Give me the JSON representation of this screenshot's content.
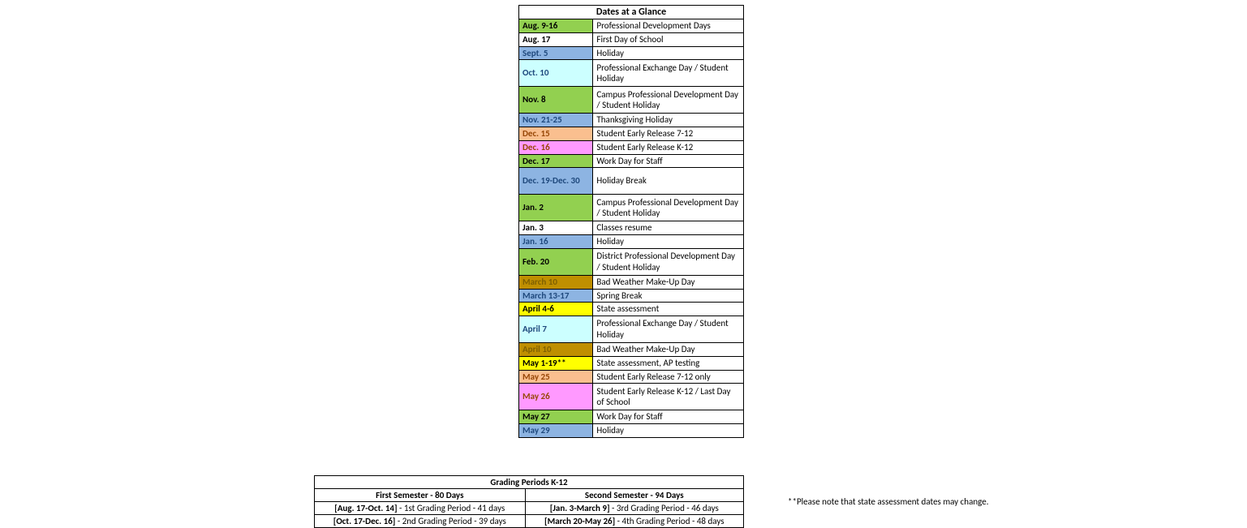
{
  "colors": {
    "green": "#92d050",
    "white": "#ffffff",
    "blue": "#8db4e2",
    "cyan": "#ccffff",
    "tan": "#fabf8f",
    "pink": "#ff99ff",
    "darkgreen": "#76933c",
    "gold": "#bf8f00",
    "yellow": "#ffff00"
  },
  "dates_title": "Dates at a Glance",
  "rows": [
    {
      "date": "Aug. 9-16",
      "desc": "Professional Development Days",
      "bg": "green",
      "fg": "#000"
    },
    {
      "date": "Aug. 17",
      "desc": "First Day of School",
      "bg": "white",
      "fg": "#000"
    },
    {
      "date": "Sept. 5",
      "desc": "Holiday",
      "bg": "blue",
      "fg": "#1f497d"
    },
    {
      "date": "Oct. 10",
      "desc": "Professional Exchange Day /\nStudent Holiday",
      "bg": "cyan",
      "fg": "#1f497d"
    },
    {
      "date": "Nov. 8",
      "desc": "Campus Professional Development Day / Student Holiday",
      "bg": "green",
      "fg": "#000"
    },
    {
      "date": "Nov. 21-25",
      "desc": "Thanksgiving Holiday",
      "bg": "blue",
      "fg": "#1f497d"
    },
    {
      "date": "Dec. 15",
      "desc": "Student Early Release 7-12",
      "bg": "tan",
      "fg": "#974706"
    },
    {
      "date": "Dec. 16",
      "desc": "Student Early Release K-12",
      "bg": "pink",
      "fg": "#974706"
    },
    {
      "date": "Dec. 17",
      "desc": "Work Day for Staff",
      "bg": "green",
      "fg": "#000"
    },
    {
      "date": "Dec. 19-Dec. 30",
      "desc": "Holiday Break",
      "bg": "blue",
      "fg": "#1f497d"
    },
    {
      "date": "Jan. 2",
      "desc": "Campus Professional Development Day / Student Holiday",
      "bg": "green",
      "fg": "#000"
    },
    {
      "date": "Jan. 3",
      "desc": "Classes resume",
      "bg": "white",
      "fg": "#000"
    },
    {
      "date": "Jan. 16",
      "desc": "Holiday",
      "bg": "blue",
      "fg": "#1f497d"
    },
    {
      "date": "Feb. 20",
      "desc": "District Professional Development Day / Student Holiday",
      "bg": "green",
      "fg": "#000"
    },
    {
      "date": "March 10",
      "desc": "Bad Weather Make-Up Day",
      "bg": "gold",
      "fg": "#7f6000"
    },
    {
      "date": "March 13-17",
      "desc": "Spring Break",
      "bg": "blue",
      "fg": "#1f497d"
    },
    {
      "date": "April 4-6",
      "desc": "State assessment",
      "bg": "yellow",
      "fg": "#000"
    },
    {
      "date": "April 7",
      "desc": "Professional Exchange Day /\nStudent Holiday",
      "bg": "cyan",
      "fg": "#1f497d"
    },
    {
      "date": "April 10",
      "desc": "Bad Weather Make-Up Day",
      "bg": "gold",
      "fg": "#7f6000"
    },
    {
      "date": "May 1-19**",
      "desc": "State assessment, AP testing",
      "bg": "yellow",
      "fg": "#000"
    },
    {
      "date": "May 25",
      "desc": "Student Early Release 7-12 only",
      "bg": "tan",
      "fg": "#974706"
    },
    {
      "date": "May 26",
      "desc": "Student Early Release K-12 / Last Day of School",
      "bg": "pink",
      "fg": "#974706"
    },
    {
      "date": "May 27",
      "desc": "Work Day for Staff",
      "bg": "green",
      "fg": "#000"
    },
    {
      "date": "May 29",
      "desc": "Holiday",
      "bg": "blue",
      "fg": "#1f497d"
    }
  ],
  "tall_rows": [
    3,
    4,
    9,
    10,
    13,
    17,
    21
  ],
  "grading": {
    "title": "Grading Periods K-12",
    "sem1_head": "First Semester - 80 Days",
    "sem2_head": "Second Semester - 94 Days",
    "sem1_r1_b": "[Aug. 17-Oct. 14]",
    "sem1_r1_t": " - 1st Grading Period - 41 days",
    "sem2_r1_b": "[Jan. 3-March 9]",
    "sem2_r1_t": " - 3rd Grading Period - 46 days",
    "sem1_r2_b": "[Oct. 17-Dec. 16]",
    "sem1_r2_t": " - 2nd Grading Period - 39 days",
    "sem2_r2_b": "[March 20-May 26]",
    "sem2_r2_t": " - 4th Grading Period - 48 days"
  },
  "note": "**Please note that state assessment dates may change."
}
